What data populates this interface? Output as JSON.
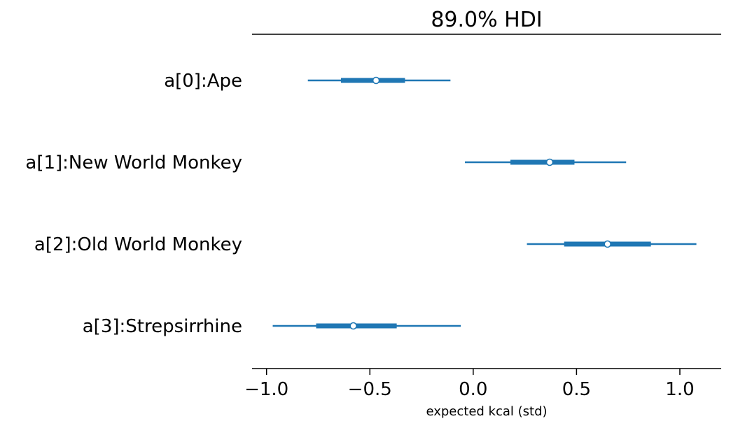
{
  "chart_data": {
    "type": "forest",
    "title": "89.0% HDI",
    "xlabel": "expected kcal (std)",
    "xlim": [
      -1.07,
      1.2
    ],
    "xticks": [
      -1.0,
      -0.5,
      0.0,
      0.5,
      1.0
    ],
    "xtick_labels": [
      "−1.0",
      "−0.5",
      "0.0",
      "0.5",
      "1.0"
    ],
    "color": "#1f77b4",
    "categories": [
      "a[0]:Ape",
      "a[1]:New World Monkey",
      "a[2]:Old World Monkey",
      "a[3]:Strepsirrhine"
    ],
    "series": [
      {
        "category": "a[0]:Ape",
        "hdi_low": -0.8,
        "iqr_low": -0.64,
        "median": -0.47,
        "iqr_high": -0.33,
        "hdi_high": -0.11
      },
      {
        "category": "a[1]:New World Monkey",
        "hdi_low": -0.04,
        "iqr_low": 0.18,
        "median": 0.37,
        "iqr_high": 0.49,
        "hdi_high": 0.74
      },
      {
        "category": "a[2]:Old World Monkey",
        "hdi_low": 0.26,
        "iqr_low": 0.44,
        "median": 0.65,
        "iqr_high": 0.86,
        "hdi_high": 1.08
      },
      {
        "category": "a[3]:Strepsirrhine",
        "hdi_low": -0.97,
        "iqr_low": -0.76,
        "median": -0.58,
        "iqr_high": -0.37,
        "hdi_high": -0.06
      }
    ]
  }
}
